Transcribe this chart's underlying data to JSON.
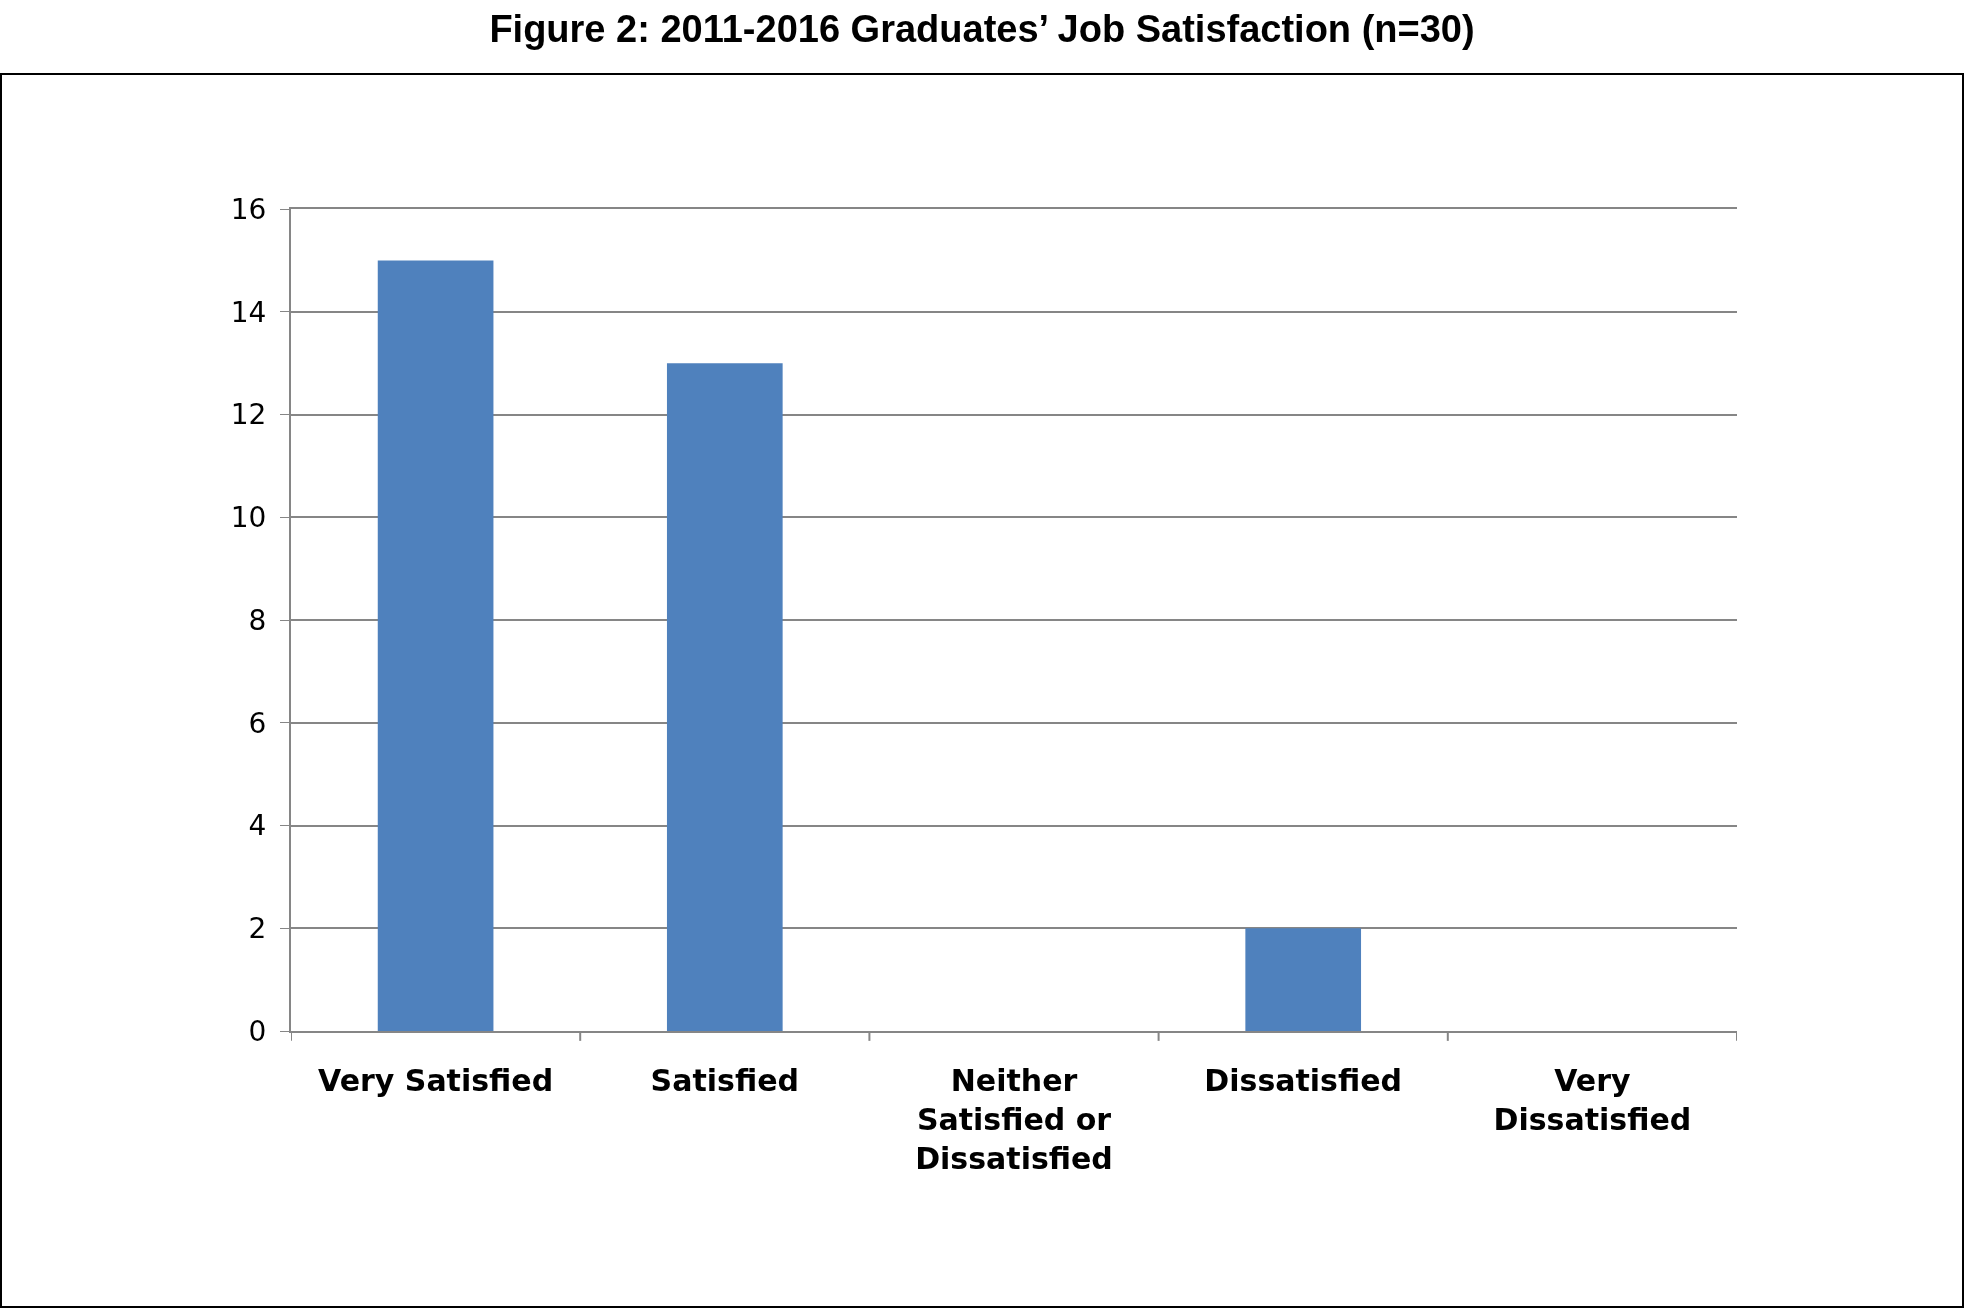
{
  "chart_data": {
    "type": "bar",
    "title": "Figure 2: 2011-2016 Graduates’ Job Satisfaction (n=30)",
    "categories": [
      "Very Satisfied",
      "Satisfied",
      "Neither Satisfied or Dissatisfied",
      "Dissatisfied",
      "Very Dissatisfied"
    ],
    "values": [
      15,
      13,
      0,
      2,
      0
    ],
    "color": "#4f81bd",
    "ylim": [
      0,
      16
    ],
    "yticks": [
      0,
      2,
      4,
      6,
      8,
      10,
      12,
      14,
      16
    ],
    "grid": "y"
  }
}
